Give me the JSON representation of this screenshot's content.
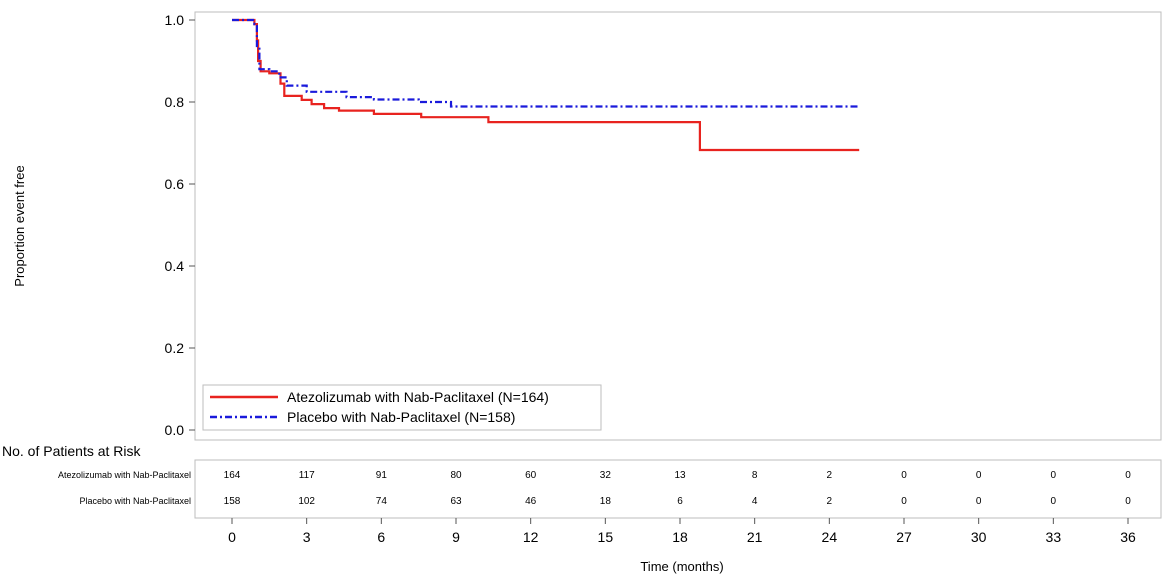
{
  "chart_data": {
    "type": "line",
    "ylabel": "Proportion event free",
    "xlabel": "Time (months)",
    "xlim": [
      0,
      36
    ],
    "ylim": [
      0,
      1
    ],
    "x_ticks": [
      0,
      3,
      6,
      9,
      12,
      15,
      18,
      21,
      24,
      27,
      30,
      33,
      36
    ],
    "y_ticks": [
      "0.0",
      "0.2",
      "0.4",
      "0.6",
      "0.8",
      "1.0"
    ],
    "grid": false,
    "legend_position": "bottom-left",
    "series": [
      {
        "name": "Atezolizumab with Nab-Paclitaxel (N=164)",
        "color": "#e8231f",
        "style": "solid",
        "points": [
          [
            0,
            1.0
          ],
          [
            0.9,
            1.0
          ],
          [
            0.9,
            0.99
          ],
          [
            1.0,
            0.99
          ],
          [
            1.0,
            0.95
          ],
          [
            1.05,
            0.95
          ],
          [
            1.05,
            0.9
          ],
          [
            1.15,
            0.9
          ],
          [
            1.15,
            0.875
          ],
          [
            1.5,
            0.875
          ],
          [
            1.5,
            0.87
          ],
          [
            1.95,
            0.87
          ],
          [
            1.95,
            0.845
          ],
          [
            2.1,
            0.845
          ],
          [
            2.1,
            0.815
          ],
          [
            2.8,
            0.815
          ],
          [
            2.8,
            0.805
          ],
          [
            3.2,
            0.805
          ],
          [
            3.2,
            0.795
          ],
          [
            3.7,
            0.795
          ],
          [
            3.7,
            0.785
          ],
          [
            4.3,
            0.785
          ],
          [
            4.3,
            0.779
          ],
          [
            5.7,
            0.779
          ],
          [
            5.7,
            0.771
          ],
          [
            7.6,
            0.771
          ],
          [
            7.6,
            0.763
          ],
          [
            10.3,
            0.763
          ],
          [
            10.3,
            0.751
          ],
          [
            18.8,
            0.751
          ],
          [
            18.8,
            0.683
          ],
          [
            25.2,
            0.683
          ]
        ]
      },
      {
        "name": "Placebo with Nab-Paclitaxel (N=158)",
        "color": "#1a1adb",
        "style": "dashdot",
        "points": [
          [
            0,
            1.0
          ],
          [
            0.9,
            1.0
          ],
          [
            0.9,
            0.99
          ],
          [
            1.0,
            0.99
          ],
          [
            1.0,
            0.93
          ],
          [
            1.1,
            0.93
          ],
          [
            1.1,
            0.88
          ],
          [
            1.5,
            0.88
          ],
          [
            1.5,
            0.875
          ],
          [
            1.9,
            0.875
          ],
          [
            1.9,
            0.86
          ],
          [
            2.2,
            0.86
          ],
          [
            2.2,
            0.84
          ],
          [
            3.0,
            0.84
          ],
          [
            3.0,
            0.825
          ],
          [
            4.6,
            0.825
          ],
          [
            4.6,
            0.812
          ],
          [
            5.7,
            0.812
          ],
          [
            5.7,
            0.806
          ],
          [
            7.5,
            0.806
          ],
          [
            7.5,
            0.8
          ],
          [
            8.8,
            0.8
          ],
          [
            8.8,
            0.789
          ],
          [
            25.2,
            0.789
          ]
        ]
      }
    ],
    "risk_table": {
      "title": "No. of Patients at Risk",
      "rows": [
        {
          "label": "Atezolizumab with Nab-Paclitaxel",
          "counts": [
            164,
            117,
            91,
            80,
            60,
            32,
            13,
            8,
            2,
            0,
            0,
            0,
            0
          ]
        },
        {
          "label": "Placebo with Nab-Paclitaxel",
          "counts": [
            158,
            102,
            74,
            63,
            46,
            18,
            6,
            4,
            2,
            0,
            0,
            0,
            0
          ]
        }
      ]
    }
  }
}
